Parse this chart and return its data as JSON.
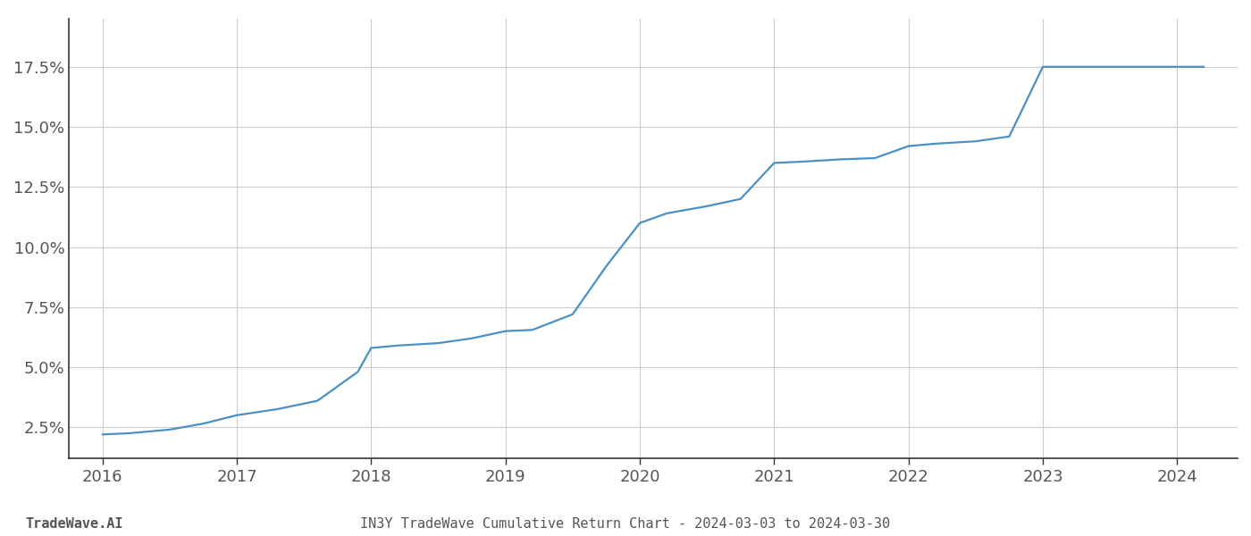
{
  "x_years": [
    2016.0,
    2016.2,
    2016.5,
    2016.75,
    2017.0,
    2017.3,
    2017.6,
    2017.9,
    2018.0,
    2018.2,
    2018.5,
    2018.75,
    2019.0,
    2019.2,
    2019.5,
    2019.75,
    2020.0,
    2020.2,
    2020.5,
    2020.75,
    2021.0,
    2021.2,
    2021.5,
    2021.75,
    2022.0,
    2022.2,
    2022.5,
    2022.75,
    2023.0,
    2023.2,
    2023.5,
    2023.75,
    2024.0,
    2024.2
  ],
  "y_values": [
    2.2,
    2.25,
    2.4,
    2.65,
    3.0,
    3.25,
    3.6,
    4.8,
    5.8,
    5.9,
    6.0,
    6.2,
    6.5,
    6.55,
    7.2,
    9.2,
    11.0,
    11.4,
    11.7,
    12.0,
    13.5,
    13.55,
    13.65,
    13.7,
    14.2,
    14.3,
    14.4,
    14.6,
    17.5,
    17.5,
    17.5,
    17.5,
    17.5,
    17.5
  ],
  "line_color": "#4a90c4",
  "line_width": 1.6,
  "background_color": "#ffffff",
  "grid_color": "#cccccc",
  "left_spine_color": "#333333",
  "bottom_spine_color": "#333333",
  "title": "IN3Y TradeWave Cumulative Return Chart - 2024-03-03 to 2024-03-30",
  "watermark_left": "TradeWave.AI",
  "x_tick_years": [
    2016,
    2017,
    2018,
    2019,
    2020,
    2021,
    2022,
    2023,
    2024
  ],
  "y_ticks": [
    2.5,
    5.0,
    7.5,
    10.0,
    12.5,
    15.0,
    17.5
  ],
  "ylim": [
    1.2,
    19.5
  ],
  "xlim": [
    2015.75,
    2024.45
  ],
  "title_fontsize": 11,
  "watermark_fontsize": 11,
  "tick_label_color": "#555555",
  "tick_label_fontsize": 13
}
